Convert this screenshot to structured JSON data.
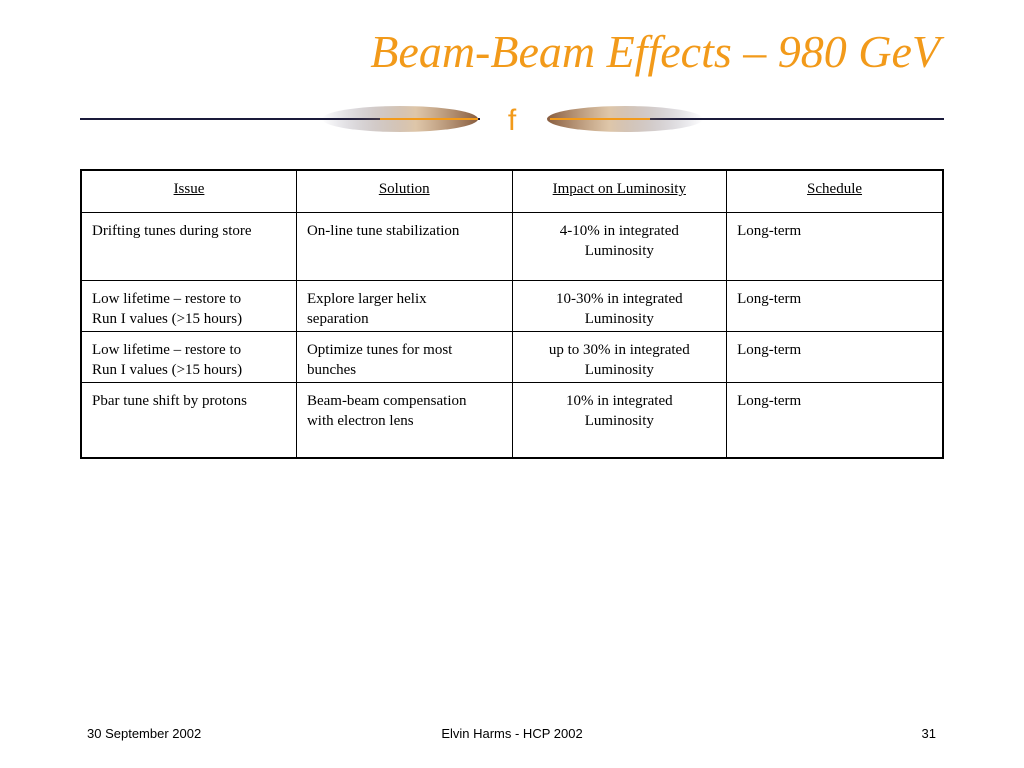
{
  "slide": {
    "title": "Beam-Beam Effects – 980 GeV",
    "divider_glyph": "f",
    "accent_color": "#f29a1a"
  },
  "table": {
    "headers": [
      "Issue",
      "Solution",
      "Impact on Luminosity",
      "Schedule"
    ],
    "rows": [
      {
        "issue": "Drifting tunes during store",
        "solution": "On-line tune stabilization",
        "impact": [
          "4-10% in integrated",
          "Luminosity"
        ],
        "schedule": "Long-term"
      },
      {
        "issue": [
          "Low lifetime – restore to",
          "Run I values (>15 hours)"
        ],
        "solution": [
          "Explore larger helix",
          "separation"
        ],
        "impact": [
          "10-30% in integrated",
          "Luminosity"
        ],
        "schedule": "Long-term"
      },
      {
        "issue": [
          "Low lifetime – restore to",
          "Run I values (>15 hours)"
        ],
        "solution": [
          "Optimize tunes for most",
          "bunches"
        ],
        "impact": [
          "up to 30% in integrated",
          "Luminosity"
        ],
        "schedule": "Long-term"
      },
      {
        "issue": "Pbar tune shift by protons",
        "solution": [
          "Beam-beam compensation",
          "with electron lens"
        ],
        "impact": [
          "10% in integrated",
          "Luminosity"
        ],
        "schedule": "Long-term"
      }
    ]
  },
  "footer": {
    "date": "30 September 2002",
    "author": "Elvin Harms - HCP 2002",
    "page": "31"
  }
}
